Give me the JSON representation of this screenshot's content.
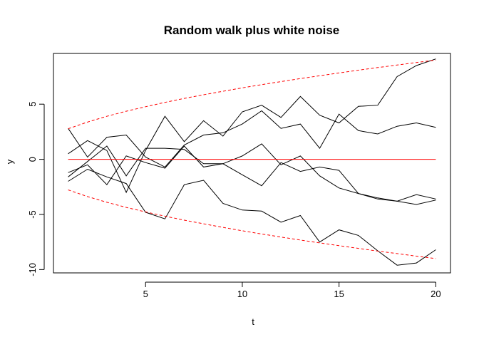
{
  "chart_data": {
    "type": "line",
    "title": "Random walk plus white noise",
    "xlabel": "t",
    "ylabel": "y",
    "xlim": [
      0.24,
      20.76
    ],
    "ylim": [
      -10.3,
      9.6
    ],
    "x_ticks": [
      5,
      10,
      15,
      20
    ],
    "y_ticks": [
      -10,
      -5,
      0,
      5
    ],
    "grid": false,
    "legend": "none",
    "x": [
      1,
      2,
      3,
      4,
      5,
      6,
      7,
      8,
      9,
      10,
      11,
      12,
      13,
      14,
      15,
      16,
      17,
      18,
      19,
      20
    ],
    "series": [
      {
        "style": "solid",
        "color": "#000000",
        "values": [
          0.5,
          1.7,
          0.8,
          -3.0,
          0.8,
          3.9,
          1.6,
          3.5,
          2.1,
          4.3,
          4.9,
          3.8,
          5.7,
          4.0,
          3.3,
          4.8,
          4.9,
          7.5,
          8.5,
          9.1
        ]
      },
      {
        "style": "solid",
        "color": "#000000",
        "values": [
          2.8,
          0.2,
          2.0,
          2.2,
          0.2,
          -0.7,
          1.3,
          2.2,
          2.4,
          3.2,
          4.4,
          2.8,
          3.2,
          1.0,
          4.1,
          2.6,
          2.3,
          3.0,
          3.3,
          2.9
        ]
      },
      {
        "style": "solid",
        "color": "#000000",
        "values": [
          -1.2,
          -0.5,
          -2.3,
          0.3,
          -0.3,
          -0.8,
          1.2,
          -0.7,
          -0.4,
          0.3,
          1.4,
          -0.5,
          0.3,
          -1.5,
          -2.6,
          -3.1,
          -3.5,
          -3.8,
          -3.2,
          -3.6
        ]
      },
      {
        "style": "solid",
        "color": "#000000",
        "values": [
          -1.6,
          -0.2,
          1.2,
          -1.5,
          1.0,
          1.0,
          0.9,
          -0.4,
          -0.4,
          -1.4,
          -2.4,
          -0.3,
          -1.1,
          -0.7,
          -1.0,
          -3.1,
          -3.6,
          -3.8,
          -4.1,
          -3.7
        ]
      },
      {
        "style": "solid",
        "color": "#000000",
        "values": [
          -2.0,
          -0.9,
          -1.6,
          -2.2,
          -4.8,
          -5.4,
          -2.3,
          -1.9,
          -4.0,
          -4.6,
          -4.7,
          -5.7,
          -5.1,
          -7.5,
          -6.4,
          -6.9,
          -8.3,
          -9.6,
          -9.4,
          -8.2
        ]
      },
      {
        "style": "solid",
        "color": "#ff0000",
        "values": [
          0,
          0,
          0,
          0,
          0,
          0,
          0,
          0,
          0,
          0,
          0,
          0,
          0,
          0,
          0,
          0,
          0,
          0,
          0,
          0
        ]
      },
      {
        "style": "dashed",
        "color": "#ff0000",
        "values": [
          2.77,
          3.38,
          3.9,
          4.36,
          4.77,
          5.16,
          5.52,
          5.85,
          6.17,
          6.48,
          6.77,
          7.05,
          7.32,
          7.58,
          7.83,
          8.08,
          8.32,
          8.55,
          8.78,
          9.0
        ]
      },
      {
        "style": "dashed",
        "color": "#ff0000",
        "values": [
          -2.77,
          -3.38,
          -3.9,
          -4.36,
          -4.77,
          -5.16,
          -5.52,
          -5.85,
          -6.17,
          -6.48,
          -6.77,
          -7.05,
          -7.32,
          -7.58,
          -7.83,
          -8.08,
          -8.32,
          -8.55,
          -8.78,
          -9.0
        ]
      }
    ]
  }
}
